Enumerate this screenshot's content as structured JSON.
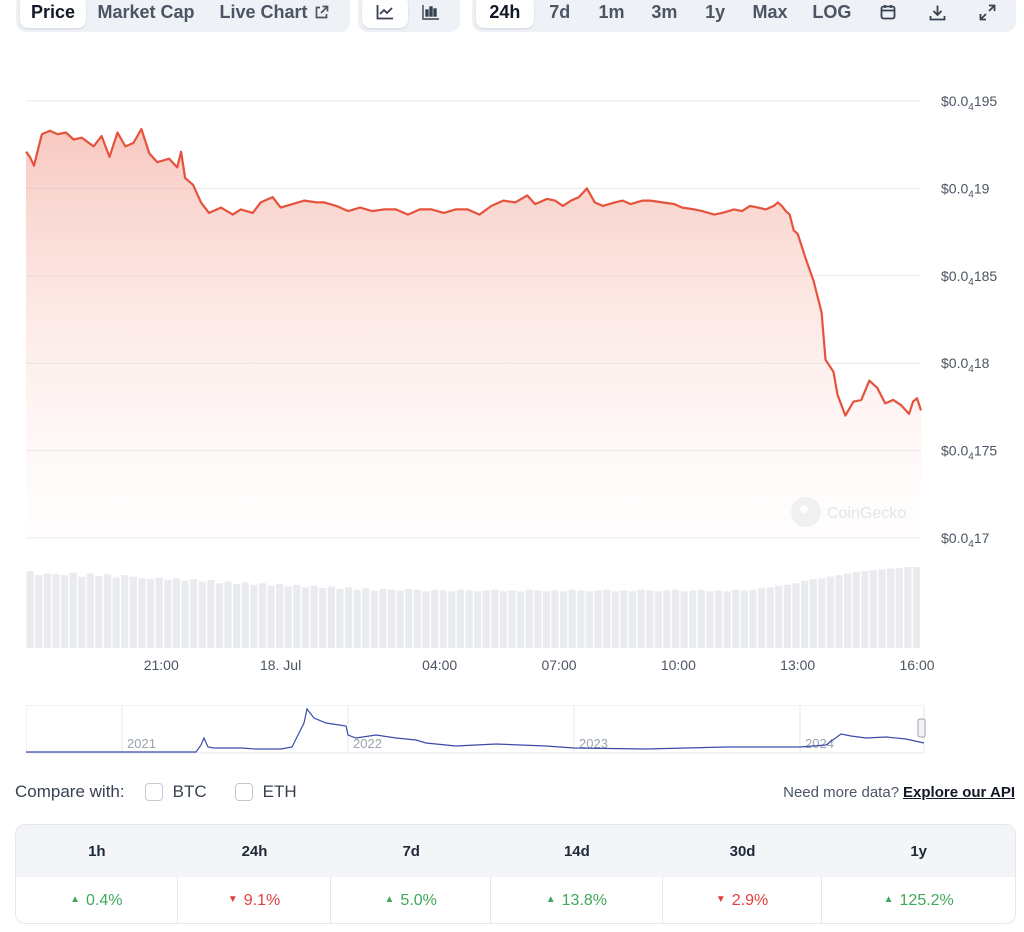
{
  "toolbar": {
    "tabs": {
      "price": "Price",
      "market_cap": "Market Cap",
      "live_chart": "Live Chart"
    },
    "ranges": [
      "24h",
      "7d",
      "1m",
      "3m",
      "1y",
      "Max",
      "LOG"
    ],
    "active_tab": "Price",
    "active_range": "24h",
    "icons": [
      "line-chart-icon",
      "candlestick-icon",
      "calendar-icon",
      "download-icon",
      "expand-icon",
      "external-link-icon"
    ]
  },
  "chart_data": {
    "type": "area",
    "ylim": [
      1.7e-06,
      1.95e-06
    ],
    "y_ticks": [
      {
        "prefix": "$0.0",
        "sub": "4",
        "suffix": "195"
      },
      {
        "prefix": "$0.0",
        "sub": "4",
        "suffix": "19"
      },
      {
        "prefix": "$0.0",
        "sub": "4",
        "suffix": "185"
      },
      {
        "prefix": "$0.0",
        "sub": "4",
        "suffix": "18"
      },
      {
        "prefix": "$0.0",
        "sub": "4",
        "suffix": "175"
      },
      {
        "prefix": "$0.0",
        "sub": "4",
        "suffix": "17"
      }
    ],
    "x_ticks": [
      "21:00",
      "18. Jul",
      "04:00",
      "07:00",
      "10:00",
      "13:00",
      "16:00"
    ],
    "x_hours": [
      21,
      24,
      28,
      31,
      34,
      37,
      40
    ],
    "price_hours": [
      17.6,
      17.7,
      17.8,
      17.9,
      18.0,
      18.2,
      18.4,
      18.6,
      18.8,
      19.0,
      19.3,
      19.5,
      19.7,
      19.9,
      20.1,
      20.3,
      20.5,
      20.7,
      20.9,
      21.2,
      21.4,
      21.5,
      21.6,
      21.8,
      22.0,
      22.2,
      22.5,
      22.8,
      23.0,
      23.3,
      23.5,
      23.8,
      24.0,
      24.3,
      24.6,
      24.9,
      25.1,
      25.4,
      25.7,
      26.0,
      26.3,
      26.6,
      26.9,
      27.2,
      27.5,
      27.8,
      28.1,
      28.4,
      28.7,
      29.0,
      29.3,
      29.6,
      29.9,
      30.2,
      30.4,
      30.7,
      30.9,
      31.1,
      31.3,
      31.5,
      31.7,
      31.9,
      32.1,
      32.4,
      32.6,
      32.8,
      33.1,
      33.3,
      33.6,
      33.9,
      34.1,
      34.4,
      34.6,
      34.9,
      35.1,
      35.4,
      35.6,
      35.8,
      36.0,
      36.2,
      36.4,
      36.5,
      36.6,
      36.7,
      36.8,
      36.9,
      37.0,
      37.2,
      37.4,
      37.6,
      37.7,
      37.9,
      38.0,
      38.2,
      38.4,
      38.6,
      38.8,
      39.0,
      39.2,
      39.4,
      39.6,
      39.8,
      39.9,
      40.0,
      40.1
    ],
    "price_values": [
      1.921,
      1.918,
      1.913,
      1.922,
      1.931,
      1.933,
      1.931,
      1.932,
      1.928,
      1.929,
      1.924,
      1.93,
      1.918,
      1.932,
      1.924,
      1.926,
      1.934,
      1.92,
      1.915,
      1.917,
      1.912,
      1.921,
      1.906,
      1.902,
      1.892,
      1.886,
      1.889,
      1.885,
      1.888,
      1.886,
      1.892,
      1.895,
      1.889,
      1.891,
      1.893,
      1.892,
      1.892,
      1.89,
      1.887,
      1.889,
      1.887,
      1.888,
      1.888,
      1.885,
      1.888,
      1.888,
      1.886,
      1.888,
      1.888,
      1.885,
      1.89,
      1.893,
      1.892,
      1.896,
      1.891,
      1.894,
      1.893,
      1.89,
      1.893,
      1.895,
      1.9,
      1.892,
      1.89,
      1.892,
      1.893,
      1.891,
      1.893,
      1.893,
      1.892,
      1.891,
      1.889,
      1.888,
      1.887,
      1.885,
      1.886,
      1.888,
      1.887,
      1.89,
      1.889,
      1.888,
      1.89,
      1.892,
      1.89,
      1.887,
      1.885,
      1.876,
      1.874,
      1.86,
      1.847,
      1.829,
      1.802,
      1.795,
      1.782,
      1.77,
      1.778,
      1.779,
      1.79,
      1.786,
      1.777,
      1.779,
      1.776,
      1.771,
      1.778,
      1.78,
      1.773
    ],
    "price_scale": 1e-06,
    "volume_relative": [
      0.95,
      0.9,
      0.92,
      0.91,
      0.9,
      0.93,
      0.88,
      0.92,
      0.89,
      0.91,
      0.87,
      0.9,
      0.88,
      0.86,
      0.85,
      0.87,
      0.84,
      0.86,
      0.83,
      0.85,
      0.82,
      0.84,
      0.8,
      0.82,
      0.79,
      0.81,
      0.78,
      0.8,
      0.77,
      0.79,
      0.76,
      0.78,
      0.75,
      0.77,
      0.74,
      0.76,
      0.73,
      0.75,
      0.72,
      0.74,
      0.71,
      0.73,
      0.72,
      0.71,
      0.73,
      0.72,
      0.7,
      0.72,
      0.71,
      0.7,
      0.72,
      0.71,
      0.7,
      0.71,
      0.72,
      0.7,
      0.71,
      0.7,
      0.72,
      0.71,
      0.7,
      0.71,
      0.7,
      0.72,
      0.71,
      0.7,
      0.71,
      0.72,
      0.7,
      0.71,
      0.7,
      0.72,
      0.71,
      0.7,
      0.71,
      0.72,
      0.7,
      0.71,
      0.72,
      0.7,
      0.71,
      0.7,
      0.72,
      0.71,
      0.72,
      0.74,
      0.75,
      0.77,
      0.78,
      0.8,
      0.83,
      0.85,
      0.86,
      0.88,
      0.9,
      0.92,
      0.94,
      0.95,
      0.96,
      0.97,
      0.98,
      0.99,
      1.0,
      1.0
    ],
    "line_color": "#e5533d",
    "grid": true
  },
  "navigator": {
    "years": [
      "2021",
      "2022",
      "2023",
      "2024"
    ]
  },
  "watermark": "CoinGecko",
  "compare": {
    "label": "Compare with:",
    "options": [
      "BTC",
      "ETH"
    ]
  },
  "api": {
    "prompt": "Need more data?",
    "link": "Explore our API"
  },
  "performance": {
    "headers": [
      "1h",
      "24h",
      "7d",
      "14d",
      "30d",
      "1y"
    ],
    "values": [
      "0.4%",
      "9.1%",
      "5.0%",
      "13.8%",
      "2.9%",
      "125.2%"
    ],
    "directions": [
      "up",
      "down",
      "up",
      "up",
      "down",
      "up"
    ]
  },
  "colors": {
    "up": "#3fa85b",
    "down": "#e23f3f",
    "line": "#e5533d"
  }
}
